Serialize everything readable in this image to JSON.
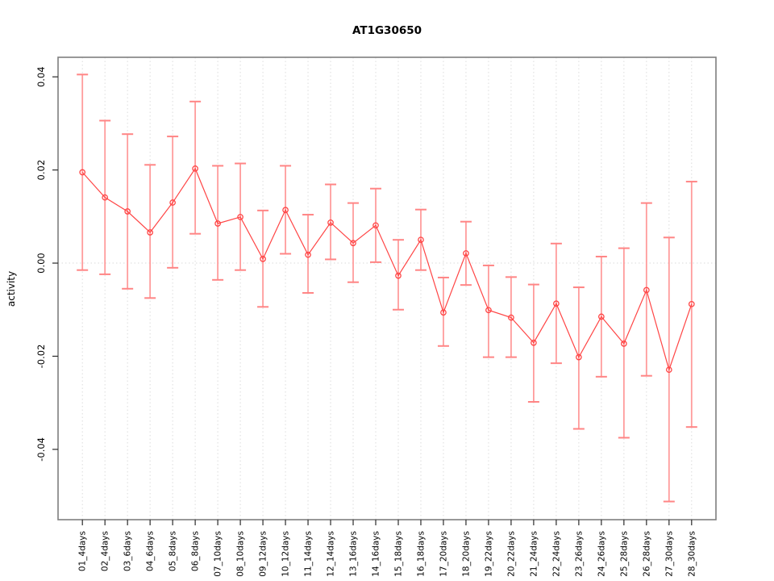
{
  "page": {
    "background": "#ffffff"
  },
  "chart_data": {
    "type": "line",
    "title": "AT1G30650",
    "xlabel": "",
    "ylabel": "activity",
    "legend": "none",
    "marker": "open-circle",
    "grid": "vertical dotted gridlines at each category plus dotted zero line",
    "categories": [
      "01_4days",
      "02_4days",
      "03_6days",
      "04_6days",
      "05_8days",
      "06_8days",
      "07_10days",
      "08_10days",
      "09_12days",
      "10_12days",
      "11_14days",
      "12_14days",
      "13_16days",
      "14_16days",
      "15_18days",
      "16_18days",
      "17_20days",
      "18_20days",
      "19_22days",
      "20_22days",
      "21_24days",
      "22_24days",
      "23_26days",
      "24_26days",
      "25_28days",
      "26_28days",
      "27_30days",
      "28_30days"
    ],
    "series": [
      {
        "name": "activity",
        "values": [
          0.0195,
          0.0141,
          0.0111,
          0.0066,
          0.013,
          0.0203,
          0.0085,
          0.0099,
          0.0009,
          0.0114,
          0.0018,
          0.0087,
          0.0043,
          0.0081,
          -0.0027,
          0.005,
          -0.0106,
          0.0021,
          -0.0101,
          -0.0117,
          -0.0171,
          -0.0087,
          -0.0202,
          -0.0115,
          -0.0173,
          -0.0058,
          -0.0229,
          -0.0088
        ],
        "error_lower": [
          -0.0015,
          -0.0024,
          -0.0055,
          -0.0075,
          -0.001,
          0.0063,
          -0.0036,
          -0.0015,
          -0.0094,
          0.002,
          -0.0064,
          0.0008,
          -0.0041,
          0.0002,
          -0.01,
          -0.0015,
          -0.0178,
          -0.0047,
          -0.0202,
          -0.0202,
          -0.0298,
          -0.0215,
          -0.0356,
          -0.0244,
          -0.0375,
          -0.0242,
          -0.0512,
          -0.0352
        ],
        "error_upper": [
          0.0405,
          0.0306,
          0.0277,
          0.0211,
          0.0272,
          0.0347,
          0.0209,
          0.0214,
          0.0113,
          0.0209,
          0.0104,
          0.0169,
          0.0129,
          0.016,
          0.005,
          0.0115,
          -0.0031,
          0.0089,
          -0.0005,
          -0.003,
          -0.0046,
          0.0042,
          -0.0052,
          0.0014,
          0.0032,
          0.0129,
          0.0055,
          0.0175
        ]
      }
    ],
    "ylim": [
      -0.0551,
      0.0442
    ],
    "yticks": [
      0.04,
      0.02,
      0.0,
      -0.02,
      -0.04
    ],
    "ytick_labels": [
      "0.04",
      "0.02",
      "0.00",
      "-0.02",
      "-0.04"
    ],
    "colors": {
      "series_line": "#ff4545",
      "marker_stroke": "#ff4545",
      "error_bar": "#ff9c9c",
      "error_cap": "#ff8585",
      "gridline": "#dcdcdc",
      "zero_line": "#d9d9d9",
      "axis_box": "#7f7f7f",
      "tick": "#2a2a2a",
      "text": "#000000"
    }
  }
}
